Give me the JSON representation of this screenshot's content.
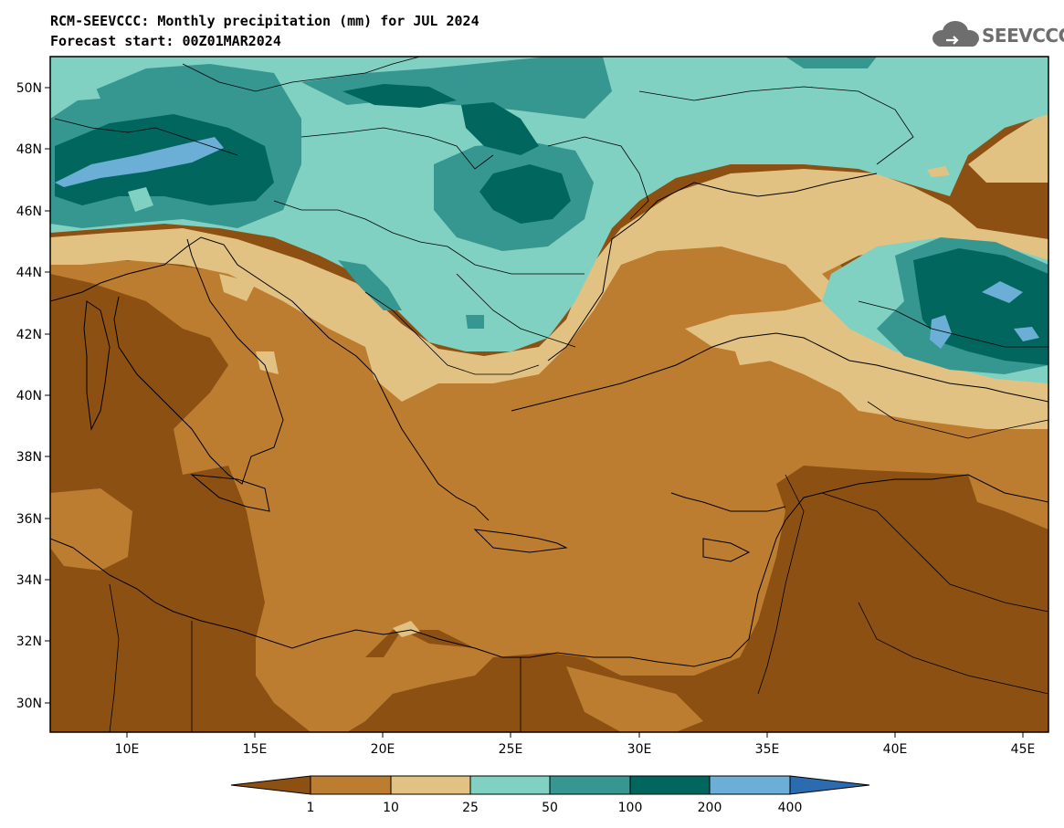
{
  "header": {
    "title": "RCM-SEEVCCC: Monthly precipitation (mm) for JUL 2024",
    "subtitle": "Forecast start: 00Z01MAR2024"
  },
  "logo": {
    "text": "SEEVCCC",
    "icon": "cloud-icon"
  },
  "map": {
    "variable": "Monthly precipitation",
    "units": "mm",
    "month": "JUL 2024",
    "region": {
      "lon_range": [
        7,
        46
      ],
      "lat_range": [
        29,
        51
      ]
    },
    "lat_ticks": [
      "50N",
      "48N",
      "46N",
      "44N",
      "42N",
      "40N",
      "38N",
      "36N",
      "34N",
      "32N",
      "30N"
    ],
    "lon_ticks": [
      "10E",
      "15E",
      "20E",
      "25E",
      "30E",
      "35E",
      "40E",
      "45E"
    ]
  },
  "colorbar": {
    "levels": [
      "1",
      "10",
      "25",
      "50",
      "100",
      "200",
      "400"
    ],
    "colors": [
      "#8b5012",
      "#bd7d30",
      "#e2c282",
      "#80d1c1",
      "#369690",
      "#00665e",
      "#6baed6",
      "#2b6cb0"
    ]
  }
}
